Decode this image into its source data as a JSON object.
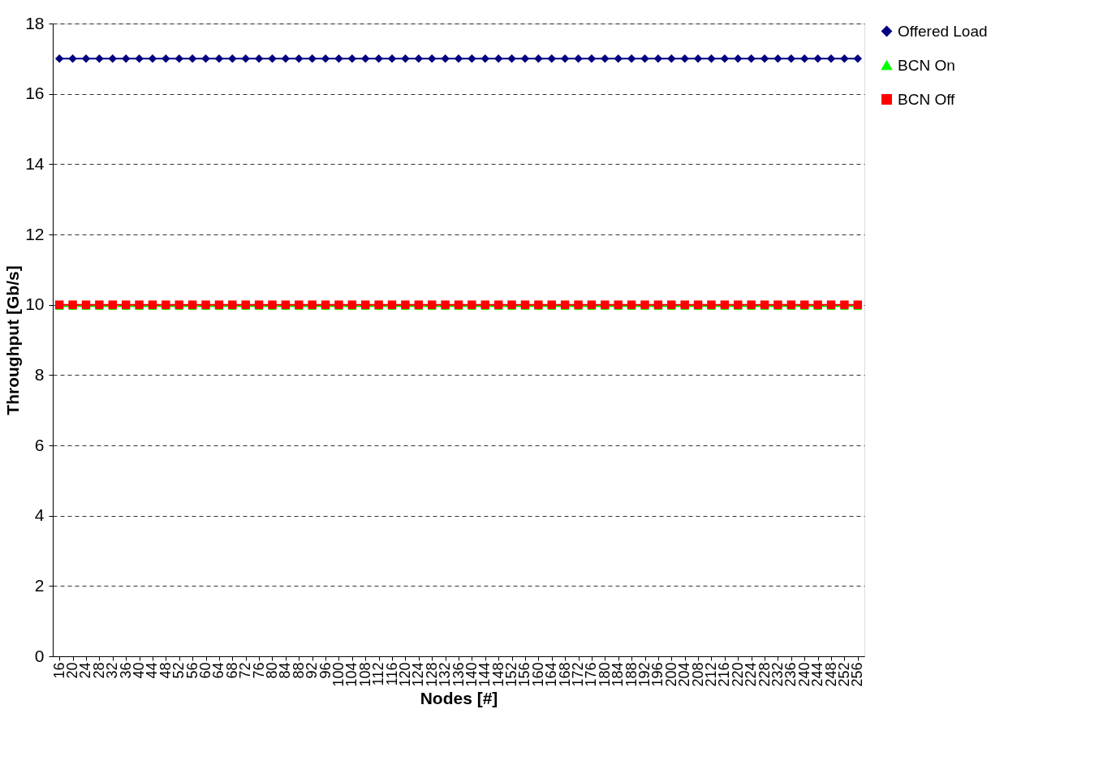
{
  "chart_data": {
    "type": "line",
    "xlabel": "Nodes [#]",
    "ylabel": "Throughput [Gb/s]",
    "categories": [
      "16",
      "20",
      "24",
      "28",
      "32",
      "36",
      "40",
      "44",
      "48",
      "52",
      "56",
      "60",
      "64",
      "68",
      "72",
      "76",
      "80",
      "84",
      "88",
      "92",
      "96",
      "100",
      "104",
      "108",
      "112",
      "116",
      "120",
      "124",
      "128",
      "132",
      "136",
      "140",
      "144",
      "148",
      "152",
      "156",
      "160",
      "164",
      "168",
      "172",
      "176",
      "180",
      "184",
      "188",
      "192",
      "196",
      "200",
      "204",
      "208",
      "212",
      "216",
      "220",
      "224",
      "228",
      "232",
      "236",
      "240",
      "244",
      "248",
      "252",
      "256"
    ],
    "series": [
      {
        "name": "Offered Load",
        "color": "#000080",
        "marker": "diamond",
        "values": [
          17,
          17,
          17,
          17,
          17,
          17,
          17,
          17,
          17,
          17,
          17,
          17,
          17,
          17,
          17,
          17,
          17,
          17,
          17,
          17,
          17,
          17,
          17,
          17,
          17,
          17,
          17,
          17,
          17,
          17,
          17,
          17,
          17,
          17,
          17,
          17,
          17,
          17,
          17,
          17,
          17,
          17,
          17,
          17,
          17,
          17,
          17,
          17,
          17,
          17,
          17,
          17,
          17,
          17,
          17,
          17,
          17,
          17,
          17,
          17,
          17
        ]
      },
      {
        "name": "BCN On",
        "color": "#00ff00",
        "marker": "triangle",
        "values": [
          9.96,
          9.96,
          9.96,
          9.96,
          9.96,
          9.96,
          9.96,
          9.96,
          9.96,
          9.96,
          9.96,
          9.96,
          9.96,
          9.96,
          9.96,
          9.96,
          9.96,
          9.96,
          9.96,
          9.96,
          9.96,
          9.96,
          9.96,
          9.96,
          9.96,
          9.96,
          9.96,
          9.96,
          9.96,
          9.96,
          9.96,
          9.96,
          9.96,
          9.96,
          9.96,
          9.96,
          9.96,
          9.96,
          9.96,
          9.96,
          9.96,
          9.96,
          9.96,
          9.96,
          9.96,
          9.96,
          9.96,
          9.96,
          9.96,
          9.96,
          9.96,
          9.96,
          9.96,
          9.96,
          9.96,
          9.96,
          9.96,
          9.96,
          9.96,
          9.96,
          9.96
        ]
      },
      {
        "name": "BCN Off",
        "color": "#ff0000",
        "marker": "square",
        "values": [
          10,
          10,
          10,
          10,
          10,
          10,
          10,
          10,
          10,
          10,
          10,
          10,
          10,
          10,
          10,
          10,
          10,
          10,
          10,
          10,
          10,
          10,
          10,
          10,
          10,
          10,
          10,
          10,
          10,
          10,
          10,
          10,
          10,
          10,
          10,
          10,
          10,
          10,
          10,
          10,
          10,
          10,
          10,
          10,
          10,
          10,
          10,
          10,
          10,
          10,
          10,
          10,
          10,
          10,
          10,
          10,
          10,
          10,
          10,
          10,
          10
        ]
      }
    ],
    "ylim": [
      0,
      18
    ],
    "yticks": [
      0,
      2,
      4,
      6,
      8,
      10,
      12,
      14,
      16,
      18
    ],
    "grid": "y",
    "legend": "top right"
  }
}
